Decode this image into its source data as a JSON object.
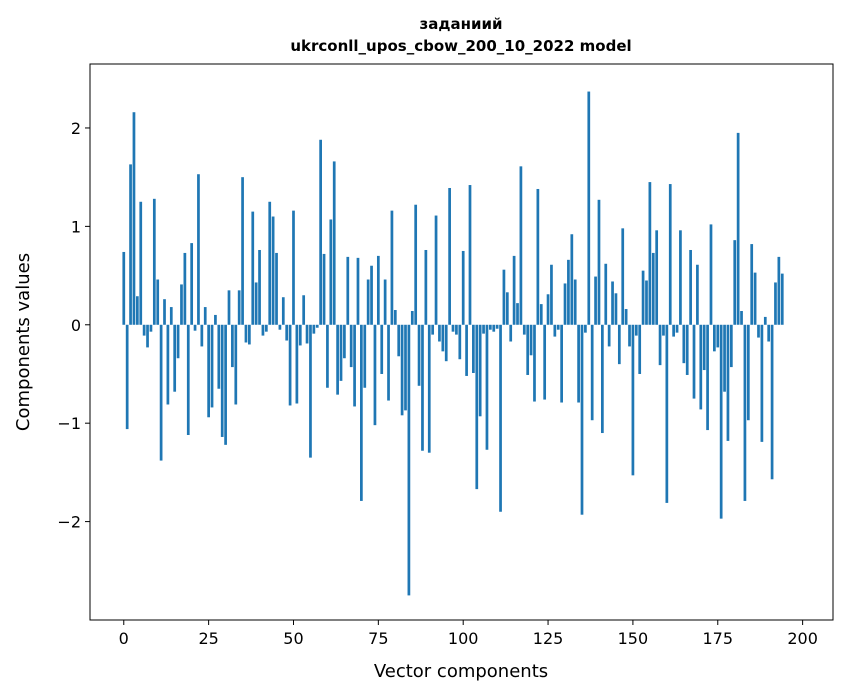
{
  "chart_data": {
    "type": "bar",
    "title_line1": "заданиий",
    "title_line2": "ukrconll_upos_cbow_200_10_2022 model",
    "xlabel": "Vector components",
    "ylabel": "Components values",
    "xlim": [
      -9.95,
      208.95
    ],
    "ylim": [
      -3.0,
      2.65
    ],
    "xticks": [
      0,
      25,
      50,
      75,
      100,
      125,
      150,
      175,
      200
    ],
    "yticks": [
      -2,
      -1,
      0,
      1,
      2
    ],
    "bar_color": "#1f77b4",
    "bar_width": 0.8,
    "values": [
      0.74,
      -1.06,
      1.63,
      2.16,
      0.29,
      1.25,
      -0.11,
      -0.23,
      -0.07,
      1.28,
      0.46,
      -1.38,
      0.26,
      -0.81,
      0.18,
      -0.68,
      -0.34,
      0.41,
      0.73,
      -1.12,
      0.83,
      -0.06,
      1.53,
      -0.22,
      0.18,
      -0.94,
      -0.84,
      0.1,
      -0.65,
      -1.14,
      -1.22,
      0.35,
      -0.43,
      -0.81,
      0.35,
      1.5,
      -0.18,
      -0.2,
      1.15,
      0.43,
      0.76,
      -0.11,
      -0.07,
      1.25,
      1.1,
      0.73,
      -0.05,
      0.28,
      -0.16,
      -0.82,
      1.16,
      -0.8,
      -0.21,
      0.3,
      -0.19,
      -1.35,
      -0.09,
      -0.03,
      1.88,
      0.72,
      -0.64,
      1.07,
      1.66,
      -0.71,
      -0.57,
      -0.34,
      0.69,
      -0.43,
      -0.83,
      0.68,
      -1.79,
      -0.64,
      0.46,
      0.6,
      -1.02,
      0.7,
      -0.5,
      0.46,
      -0.77,
      1.16,
      0.15,
      -0.32,
      -0.92,
      -0.87,
      -2.75,
      0.14,
      1.22,
      -0.62,
      -1.28,
      0.76,
      -1.3,
      -0.1,
      1.11,
      -0.17,
      -0.27,
      -0.37,
      1.39,
      -0.07,
      -0.1,
      -0.35,
      0.75,
      -0.52,
      1.42,
      -0.49,
      -1.67,
      -0.93,
      -0.09,
      -1.27,
      -0.05,
      -0.07,
      -0.04,
      -1.9,
      0.56,
      0.33,
      -0.17,
      0.7,
      0.22,
      1.61,
      -0.1,
      -0.51,
      -0.31,
      -0.78,
      1.38,
      0.21,
      -0.76,
      0.31,
      0.61,
      -0.12,
      -0.05,
      -0.79,
      0.42,
      0.66,
      0.92,
      0.46,
      -0.79,
      -1.93,
      -0.08,
      2.37,
      -0.97,
      0.49,
      1.27,
      -1.1,
      0.62,
      -0.22,
      0.44,
      0.32,
      -0.4,
      0.98,
      0.16,
      -0.22,
      -1.53,
      -0.11,
      -0.5,
      0.55,
      0.45,
      1.45,
      0.73,
      0.96,
      -0.41,
      -0.11,
      -1.81,
      1.43,
      -0.12,
      -0.08,
      0.96,
      -0.39,
      -0.51,
      0.76,
      -0.75,
      0.61,
      -0.86,
      -0.46,
      -1.07,
      1.02,
      -0.27,
      -0.23,
      -1.97,
      -0.68,
      -1.18,
      -0.43,
      0.86,
      1.95,
      0.14,
      -1.79,
      -0.97,
      0.82,
      0.53,
      -0.13,
      -1.19,
      0.08,
      -0.17,
      -1.57,
      0.43,
      0.69,
      0.52
    ]
  }
}
